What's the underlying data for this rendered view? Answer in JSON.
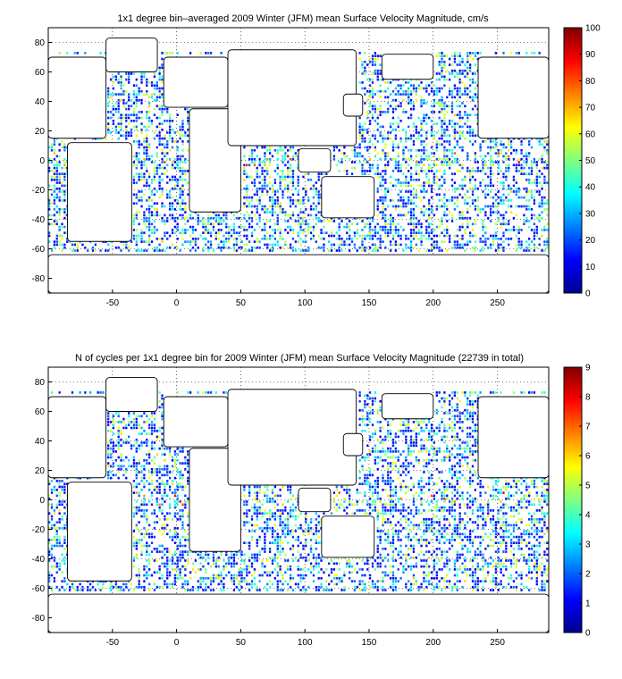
{
  "chart_data": [
    {
      "type": "heatmap",
      "title": "1x1 degree bin–averaged 2009 Winter (JFM) mean Surface Velocity Magnitude, cm/s",
      "xlabel": "",
      "ylabel": "",
      "xlim": [
        -100,
        290
      ],
      "ylim": [
        -90,
        90
      ],
      "x_ticks": [
        -50,
        0,
        50,
        100,
        150,
        200,
        250
      ],
      "y_ticks": [
        -80,
        -60,
        -40,
        -20,
        0,
        20,
        40,
        60,
        80
      ],
      "grid": "dotted",
      "colormap": "jet",
      "colorbar": {
        "min": 0,
        "max": 100,
        "ticks": [
          0,
          10,
          20,
          30,
          40,
          50,
          60,
          70,
          80,
          90,
          100
        ]
      },
      "value_range": [
        0,
        100
      ]
    },
    {
      "type": "heatmap",
      "title": "N of cycles per 1x1 degree bin for 2009 Winter (JFM) mean Surface Velocity Magnitude (22739 in total)",
      "xlabel": "",
      "ylabel": "",
      "xlim": [
        -100,
        290
      ],
      "ylim": [
        -90,
        90
      ],
      "x_ticks": [
        -50,
        0,
        50,
        100,
        150,
        200,
        250
      ],
      "y_ticks": [
        -80,
        -60,
        -40,
        -20,
        0,
        20,
        40,
        60,
        80
      ],
      "grid": "dotted",
      "colormap": "jet",
      "colorbar": {
        "min": 0,
        "max": 9,
        "ticks": [
          0,
          1,
          2,
          3,
          4,
          5,
          6,
          7,
          8,
          9
        ]
      },
      "value_range": [
        0,
        9
      ]
    }
  ]
}
